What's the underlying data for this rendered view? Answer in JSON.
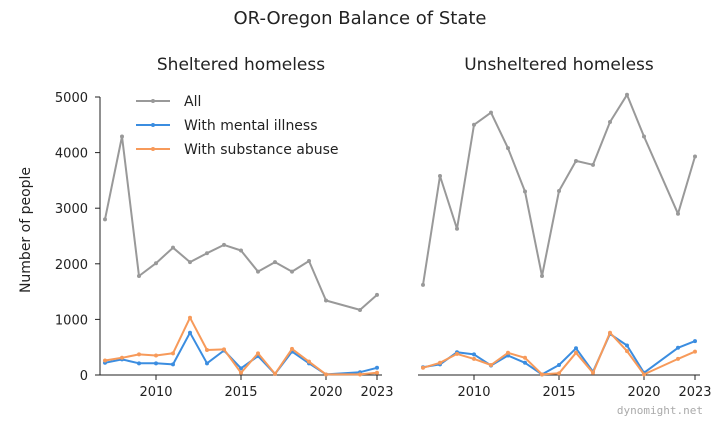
{
  "figure_title": "OR-Oregon Balance of State",
  "ylabel": "Number of people",
  "watermark": "dynomight.net",
  "colors": {
    "All": "#999999",
    "With mental illness": "#3b8de0",
    "With substance abuse": "#f79a5a"
  },
  "chart_data": [
    {
      "type": "line",
      "title": "Sheltered homeless",
      "ylabel": "Number of people",
      "xlim": [
        2007,
        2023
      ],
      "ylim": [
        0,
        5000
      ],
      "xticks": [
        2010,
        2015,
        2020,
        2023
      ],
      "yticks": [
        0,
        1000,
        2000,
        3000,
        4000,
        5000
      ],
      "legend": "top-left",
      "series": [
        {
          "name": "All",
          "points": [
            [
              2007,
              2800
            ],
            [
              2008,
              4290
            ],
            [
              2009,
              1780
            ],
            [
              2010,
              2010
            ],
            [
              2011,
              2290
            ],
            [
              2012,
              2030
            ],
            [
              2013,
              2190
            ],
            [
              2014,
              2340
            ],
            [
              2015,
              2240
            ],
            [
              2016,
              1860
            ],
            [
              2017,
              2030
            ],
            [
              2018,
              1860
            ],
            [
              2019,
              2050
            ],
            [
              2020,
              1340
            ],
            [
              2022,
              1170
            ],
            [
              2023,
              1440
            ]
          ]
        },
        {
          "name": "With mental illness",
          "points": [
            [
              2007,
              220
            ],
            [
              2008,
              280
            ],
            [
              2009,
              210
            ],
            [
              2010,
              210
            ],
            [
              2011,
              190
            ],
            [
              2012,
              760
            ],
            [
              2013,
              210
            ],
            [
              2014,
              440
            ],
            [
              2015,
              120
            ],
            [
              2016,
              340
            ],
            [
              2017,
              20
            ],
            [
              2018,
              420
            ],
            [
              2019,
              210
            ],
            [
              2020,
              10
            ],
            [
              2022,
              50
            ],
            [
              2023,
              130
            ]
          ]
        },
        {
          "name": "With substance abuse",
          "points": [
            [
              2007,
              260
            ],
            [
              2008,
              310
            ],
            [
              2009,
              370
            ],
            [
              2010,
              350
            ],
            [
              2011,
              390
            ],
            [
              2012,
              1030
            ],
            [
              2013,
              450
            ],
            [
              2014,
              460
            ],
            [
              2015,
              40
            ],
            [
              2016,
              390
            ],
            [
              2017,
              20
            ],
            [
              2018,
              470
            ],
            [
              2019,
              240
            ],
            [
              2020,
              10
            ],
            [
              2022,
              10
            ],
            [
              2023,
              40
            ]
          ]
        }
      ]
    },
    {
      "type": "line",
      "title": "Unsheltered homeless",
      "xlim": [
        2007,
        2023
      ],
      "ylim": [
        0,
        5000
      ],
      "xticks": [
        2010,
        2015,
        2020,
        2023
      ],
      "series": [
        {
          "name": "All",
          "points": [
            [
              2007,
              1620
            ],
            [
              2008,
              3580
            ],
            [
              2009,
              2630
            ],
            [
              2010,
              4500
            ],
            [
              2011,
              4720
            ],
            [
              2012,
              4080
            ],
            [
              2013,
              3300
            ],
            [
              2014,
              1780
            ],
            [
              2015,
              3310
            ],
            [
              2016,
              3850
            ],
            [
              2017,
              3780
            ],
            [
              2018,
              4550
            ],
            [
              2019,
              5040
            ],
            [
              2020,
              4290
            ],
            [
              2022,
              2900
            ],
            [
              2023,
              3930
            ]
          ]
        },
        {
          "name": "With mental illness",
          "points": [
            [
              2007,
              140
            ],
            [
              2008,
              190
            ],
            [
              2009,
              410
            ],
            [
              2010,
              370
            ],
            [
              2011,
              170
            ],
            [
              2012,
              350
            ],
            [
              2013,
              220
            ],
            [
              2014,
              10
            ],
            [
              2015,
              180
            ],
            [
              2016,
              480
            ],
            [
              2017,
              60
            ],
            [
              2018,
              740
            ],
            [
              2019,
              530
            ],
            [
              2020,
              40
            ],
            [
              2022,
              490
            ],
            [
              2023,
              610
            ]
          ]
        },
        {
          "name": "With substance abuse",
          "points": [
            [
              2007,
              130
            ],
            [
              2008,
              220
            ],
            [
              2009,
              380
            ],
            [
              2010,
              290
            ],
            [
              2011,
              180
            ],
            [
              2012,
              400
            ],
            [
              2013,
              310
            ],
            [
              2014,
              10
            ],
            [
              2015,
              30
            ],
            [
              2016,
              400
            ],
            [
              2017,
              40
            ],
            [
              2018,
              760
            ],
            [
              2019,
              430
            ],
            [
              2020,
              10
            ],
            [
              2022,
              290
            ],
            [
              2023,
              420
            ]
          ]
        }
      ]
    }
  ]
}
